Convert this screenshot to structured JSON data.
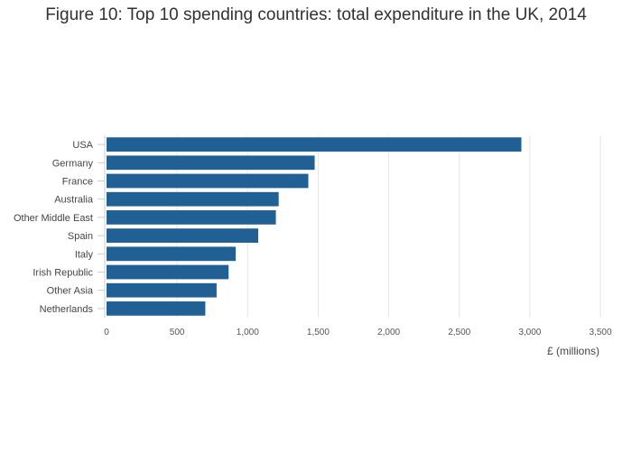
{
  "chart_data": {
    "type": "bar",
    "orientation": "horizontal",
    "title": "Figure 10: Top 10 spending countries: total expenditure in the UK, 2014",
    "categories": [
      "USA",
      "Germany",
      "France",
      "Australia",
      "Other Middle East",
      "Spain",
      "Italy",
      "Irish Republic",
      "Other Asia",
      "Netherlands"
    ],
    "values": [
      2940,
      1475,
      1430,
      1220,
      1200,
      1075,
      915,
      865,
      780,
      700
    ],
    "xlabel": "£ (millions)",
    "ylabel": "",
    "xlim": [
      0,
      3500
    ],
    "xticks": [
      0,
      500,
      1000,
      1500,
      2000,
      2500,
      3000,
      3500
    ],
    "xtick_labels": [
      "0",
      "500",
      "1,000",
      "1,500",
      "2,000",
      "2,500",
      "3,000",
      "3,500"
    ],
    "grid": true,
    "colors": {
      "bar": "#206095",
      "grid": "#e6e6e6",
      "axis": "#cccccc"
    }
  }
}
